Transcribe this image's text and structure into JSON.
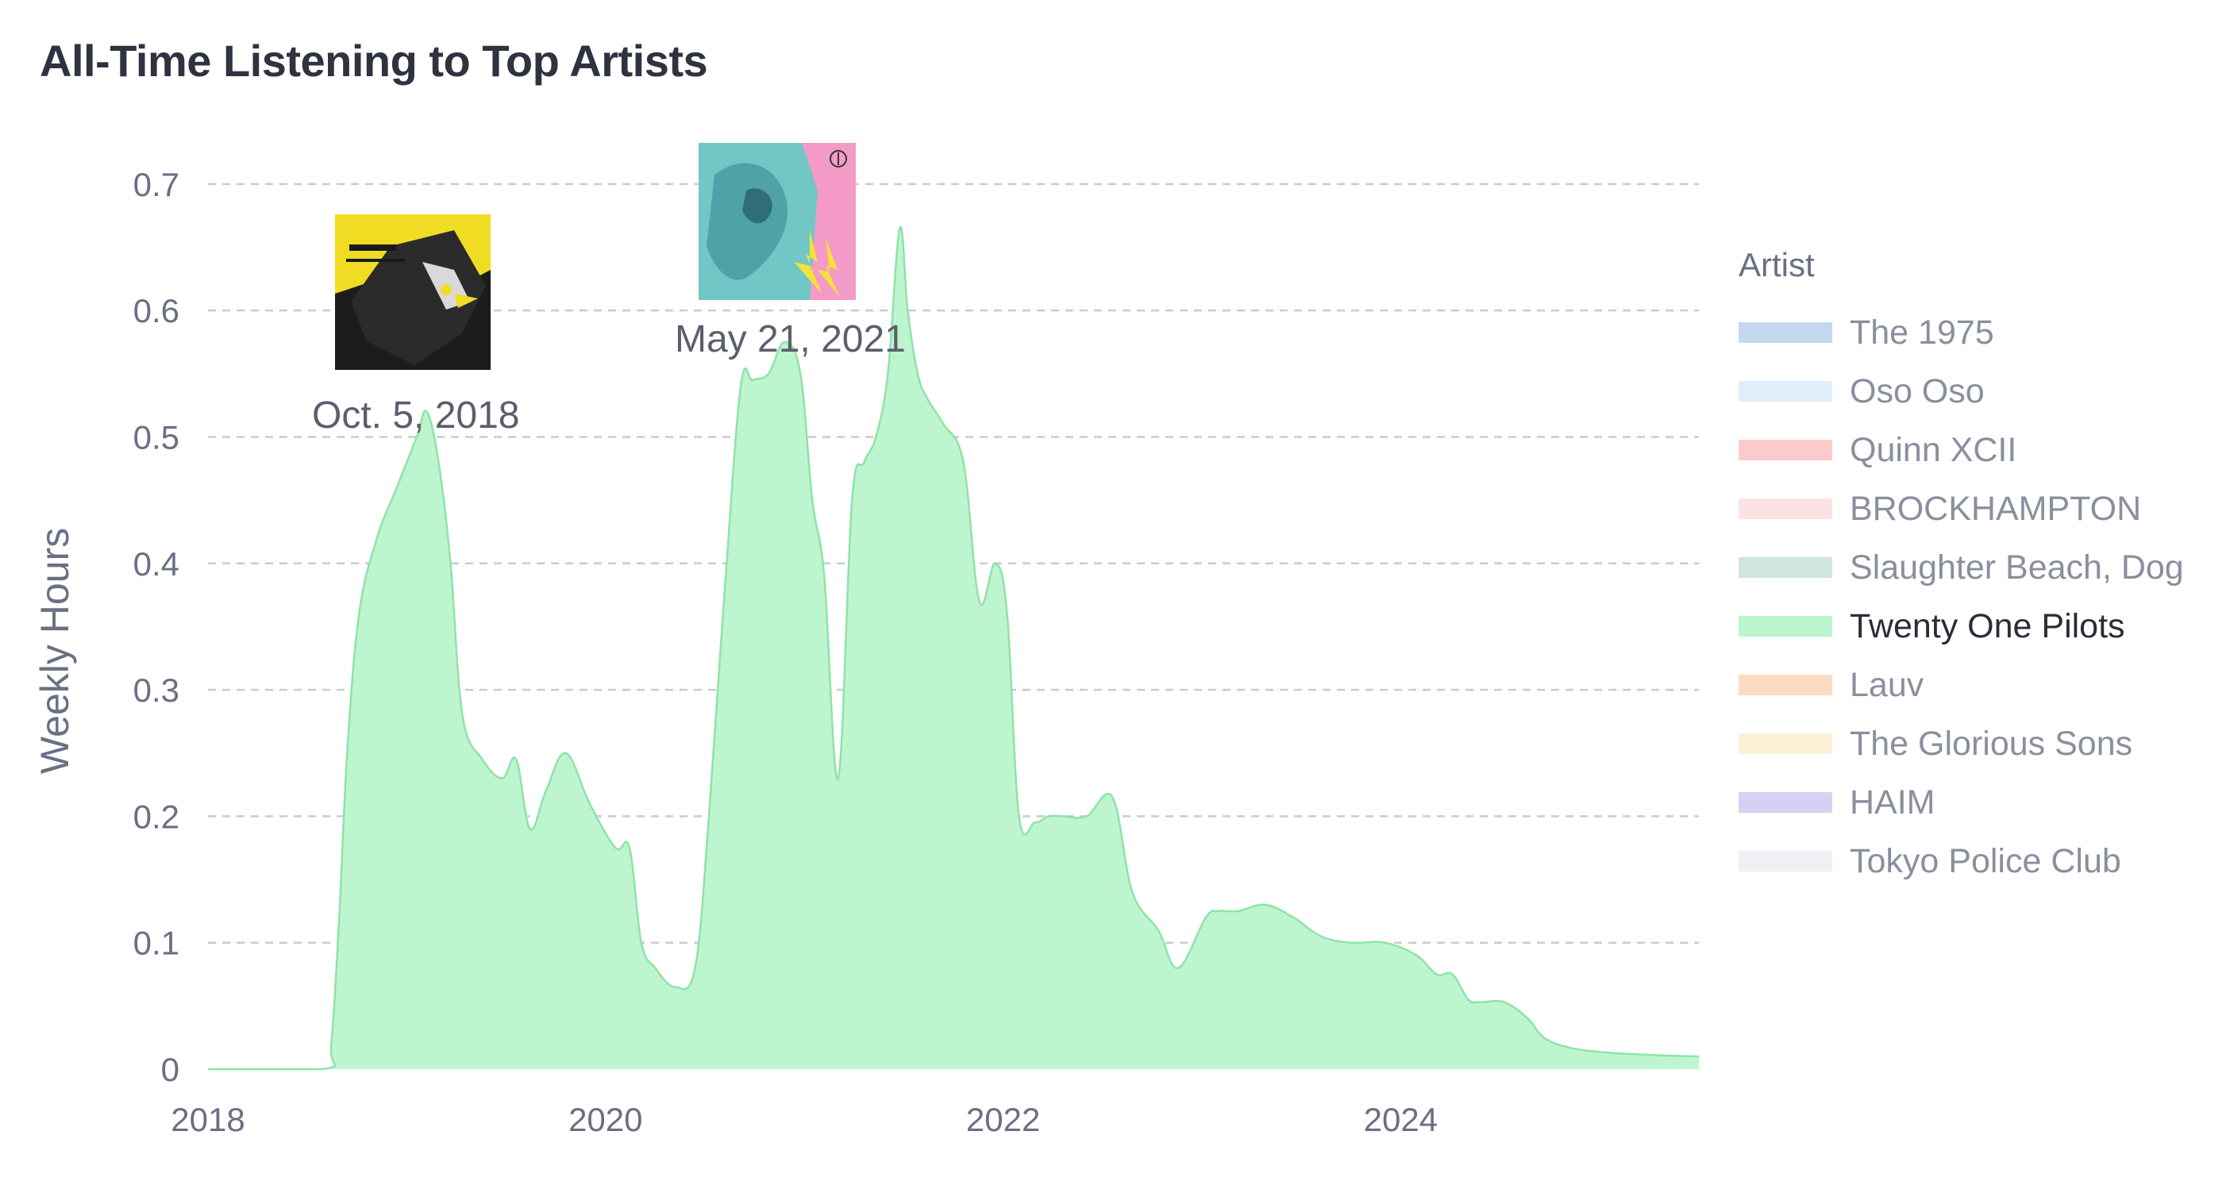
{
  "title": "All-Time Listening to Top Artists",
  "legend": {
    "title": "Artist",
    "items": [
      {
        "label": "The 1975",
        "color": "#c5d8f0",
        "active": false
      },
      {
        "label": "Oso Oso",
        "color": "#e1eefb",
        "active": false
      },
      {
        "label": "Quinn XCII",
        "color": "#fbcaca",
        "active": false
      },
      {
        "label": "BROCKHAMPTON",
        "color": "#fbe3e3",
        "active": false
      },
      {
        "label": "Slaughter Beach, Dog",
        "color": "#cfe6df",
        "active": false
      },
      {
        "label": "Twenty One Pilots",
        "color": "#bdf5cf",
        "active": true
      },
      {
        "label": "Lauv",
        "color": "#fbdcc3",
        "active": false
      },
      {
        "label": "The Glorious Sons",
        "color": "#fcf0d6",
        "active": false
      },
      {
        "label": "HAIM",
        "color": "#d8d0f3",
        "active": false
      },
      {
        "label": "Tokyo Police Club",
        "color": "#eef0f3",
        "active": false
      }
    ]
  },
  "annotations": [
    {
      "date_label": "Oct. 5, 2018",
      "x": 2019.08,
      "album_icon": "trench-album-cover",
      "colors": [
        "#f2e21d",
        "#1a1a1a"
      ]
    },
    {
      "date_label": "May 21, 2021",
      "x": 2020.95,
      "album_icon": "scaled-and-icy-album-cover",
      "colors": [
        "#6fc3c4",
        "#f39bc6",
        "#f7e23a"
      ]
    }
  ],
  "chart_data": {
    "type": "area",
    "title": "All-Time Listening to Top Artists",
    "xlabel": "",
    "ylabel": "Weekly Hours",
    "xlim": [
      2018,
      2025.5
    ],
    "ylim": [
      0,
      0.72
    ],
    "x_ticks": [
      "2018",
      "2020",
      "2022",
      "2024"
    ],
    "y_ticks": [
      "0",
      "0.1",
      "0.2",
      "0.3",
      "0.4",
      "0.5",
      "0.6",
      "0.7"
    ],
    "grid": "horizontal dashed",
    "legend_position": "right",
    "series": [
      {
        "name": "Twenty One Pilots",
        "color": "#bdf5cf",
        "stroke": "#8fe3a8",
        "x": [
          2018.0,
          2018.58,
          2018.62,
          2018.66,
          2018.7,
          2018.76,
          2018.85,
          2018.95,
          2019.05,
          2019.1,
          2019.16,
          2019.22,
          2019.28,
          2019.38,
          2019.48,
          2019.55,
          2019.62,
          2019.7,
          2019.8,
          2019.92,
          2020.05,
          2020.12,
          2020.18,
          2020.25,
          2020.35,
          2020.45,
          2020.52,
          2020.6,
          2020.68,
          2020.74,
          2020.82,
          2020.9,
          2020.98,
          2021.04,
          2021.1,
          2021.17,
          2021.24,
          2021.3,
          2021.36,
          2021.42,
          2021.48,
          2021.52,
          2021.57,
          2021.62,
          2021.7,
          2021.8,
          2021.88,
          2021.96,
          2022.02,
          2022.08,
          2022.16,
          2022.23,
          2022.3,
          2022.42,
          2022.55,
          2022.65,
          2022.78,
          2022.88,
          2023.02,
          2023.08,
          2023.18,
          2023.32,
          2023.46,
          2023.6,
          2023.75,
          2023.92,
          2024.08,
          2024.18,
          2024.26,
          2024.34,
          2024.4,
          2024.52,
          2024.64,
          2024.72,
          2024.85,
          2025.05,
          2025.3,
          2025.5
        ],
        "values": [
          0.0,
          0.0,
          0.02,
          0.12,
          0.25,
          0.36,
          0.42,
          0.46,
          0.5,
          0.52,
          0.48,
          0.4,
          0.28,
          0.245,
          0.23,
          0.245,
          0.19,
          0.22,
          0.25,
          0.21,
          0.175,
          0.175,
          0.1,
          0.08,
          0.065,
          0.08,
          0.2,
          0.38,
          0.54,
          0.545,
          0.55,
          0.575,
          0.55,
          0.45,
          0.39,
          0.23,
          0.45,
          0.48,
          0.5,
          0.55,
          0.665,
          0.6,
          0.55,
          0.53,
          0.51,
          0.48,
          0.37,
          0.4,
          0.36,
          0.2,
          0.195,
          0.2,
          0.2,
          0.2,
          0.215,
          0.14,
          0.11,
          0.08,
          0.12,
          0.125,
          0.125,
          0.13,
          0.12,
          0.105,
          0.1,
          0.1,
          0.09,
          0.075,
          0.075,
          0.055,
          0.053,
          0.053,
          0.04,
          0.025,
          0.017,
          0.013,
          0.011,
          0.01
        ]
      }
    ]
  }
}
